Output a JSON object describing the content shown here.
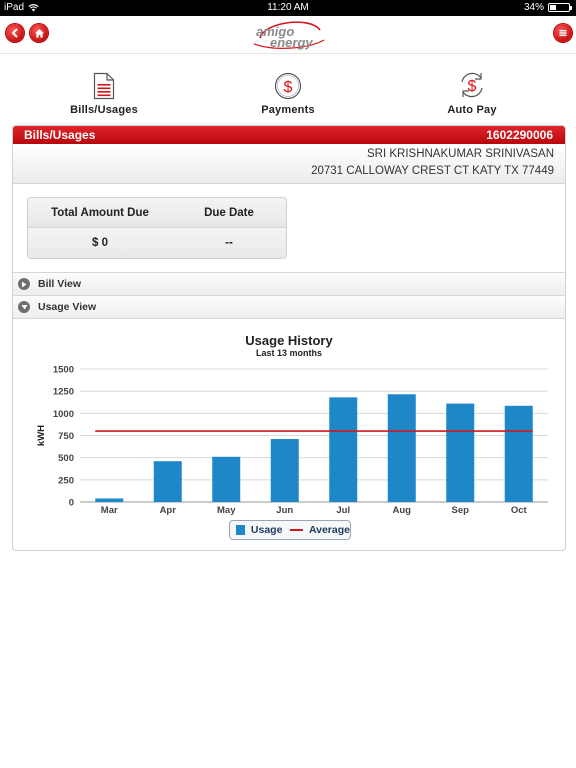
{
  "status": {
    "device": "iPad",
    "time": "11:20 AM",
    "battery": "34%",
    "battery_level": 0.34
  },
  "brand": {
    "logo_line1": "amigo",
    "logo_line2": "energy",
    "accent": "#d7141b"
  },
  "nav": [
    {
      "label": "Bills/Usages",
      "icon": "document-icon"
    },
    {
      "label": "Payments",
      "icon": "dollar-icon"
    },
    {
      "label": "Auto Pay",
      "icon": "autopay-icon"
    }
  ],
  "panel": {
    "title": "Bills/Usages",
    "account_number": "1602290006",
    "customer_name": "SRI KRISHNAKUMAR SRINIVASAN",
    "address": "20731 CALLOWAY CREST CT  KATY  TX  77449"
  },
  "summary": {
    "total_label": "Total Amount Due",
    "due_label": "Due Date",
    "total_value": "$ 0",
    "due_value": "--"
  },
  "sections": {
    "bill_view": "Bill View",
    "usage_view": "Usage View"
  },
  "chart_data": {
    "type": "bar",
    "title": "Usage History",
    "subtitle": "Last 13 months",
    "ylabel": "kWH",
    "xlabel": "",
    "categories": [
      "Mar",
      "Apr",
      "May",
      "Jun",
      "Jul",
      "Aug",
      "Sep",
      "Oct"
    ],
    "series": [
      {
        "name": "Usage",
        "type": "bar",
        "color": "#1e87c8",
        "values": [
          40,
          460,
          510,
          710,
          1180,
          1215,
          1110,
          1085
        ]
      },
      {
        "name": "Average",
        "type": "line",
        "color": "#d1191f",
        "value": 800
      }
    ],
    "yticks": [
      0,
      250,
      500,
      750,
      1000,
      1250,
      1500
    ],
    "ylim": [
      0,
      1500
    ],
    "grid": true,
    "legend": "bottom-center"
  }
}
